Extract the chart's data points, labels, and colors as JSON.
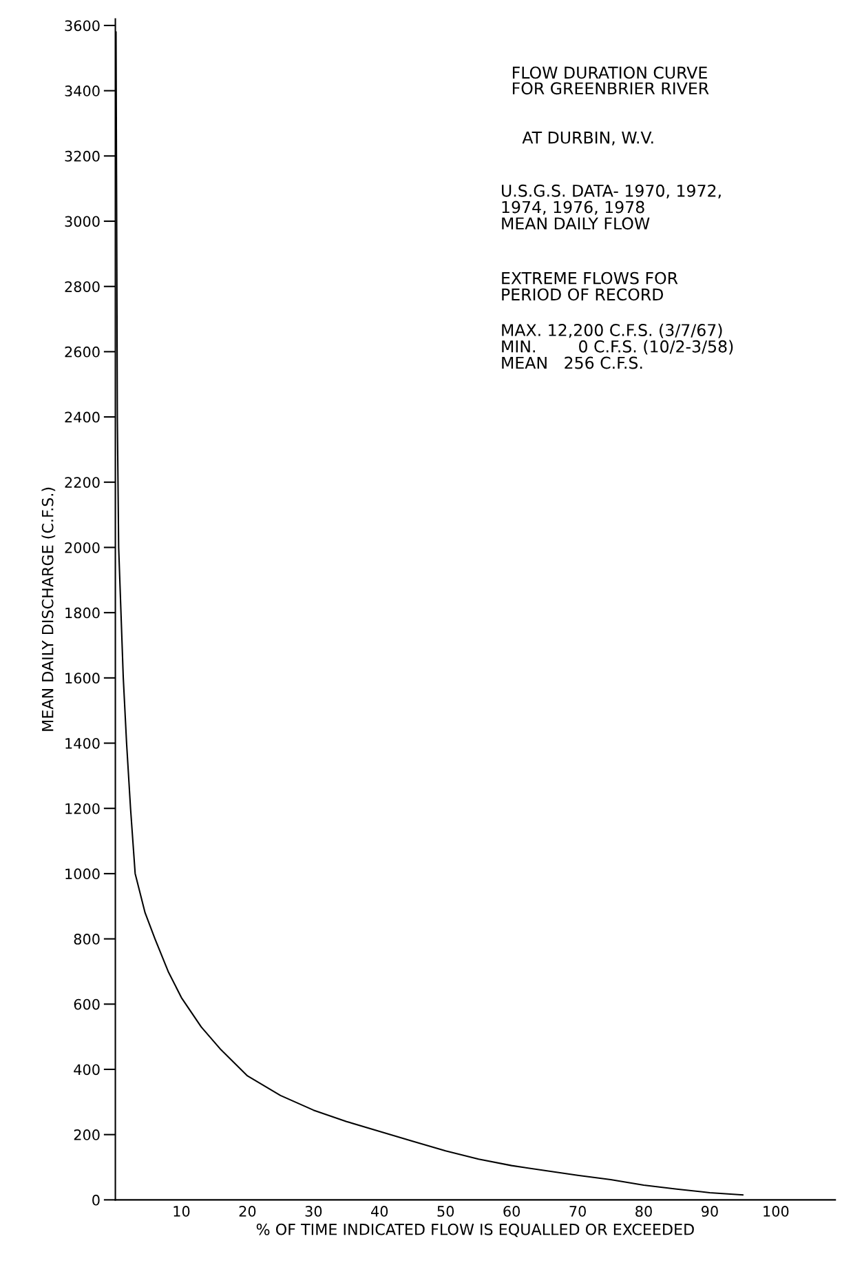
{
  "chart_data": {
    "type": "line",
    "title": "FLOW DURATION CURVE\nFOR GREENBRIER RIVER",
    "subtitle": "AT DURBIN, W.V.",
    "annotations": [
      "U.S.G.S. DATA- 1970, 1972,\n1974, 1976, 1978\nMEAN DAILY FLOW",
      "EXTREME FLOWS FOR\nPERIOD OF RECORD",
      "MAX. 12,200 C.F.S. (3/7/67)\nMIN.        0 C.F.S. (10/2-3/58)\nMEAN   256 C.F.S."
    ],
    "xlabel": "% OF TIME INDICATED FLOW IS EQUALLED OR EXCEEDED",
    "ylabel": "MEAN DAILY DISCHARGE (C.F.S.)",
    "series": [
      {
        "color": "#000000",
        "x": [
          0.1,
          0.2,
          0.3,
          0.5,
          0.85,
          1.2,
          1.7,
          2.3,
          3,
          4.5,
          6,
          8,
          10,
          13,
          16,
          18,
          20,
          25,
          30,
          35,
          40,
          45,
          50,
          55,
          60,
          65,
          70,
          75,
          80,
          85,
          90,
          95
        ],
        "values": [
          3580,
          3000,
          2400,
          2000,
          1800,
          1600,
          1400,
          1200,
          1000,
          880,
          800,
          700,
          620,
          530,
          460,
          420,
          380,
          320,
          275,
          240,
          210,
          180,
          150,
          125,
          105,
          90,
          75,
          62,
          45,
          33,
          22,
          15
        ]
      }
    ],
    "xlim": [
      0,
      109
    ],
    "ylim": [
      0,
      3620
    ],
    "xticks": [
      10,
      20,
      30,
      40,
      50,
      60,
      70,
      80,
      90,
      100
    ],
    "yticks": [
      0,
      200,
      400,
      600,
      800,
      1000,
      1200,
      1400,
      1600,
      1800,
      2000,
      2200,
      2400,
      2600,
      2800,
      3000,
      3200,
      3400,
      3600
    ],
    "grid": false,
    "legend": false,
    "marker": "none",
    "line_style": "solid"
  }
}
